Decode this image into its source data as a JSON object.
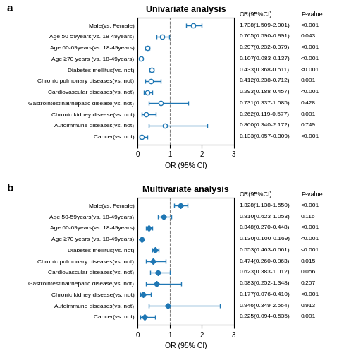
{
  "chart_data": [
    {
      "type": "forest",
      "orientation": "horizontal",
      "label": "a",
      "title": "Univariate analysis",
      "categories": [
        "Male(vs. Female)",
        "Age 50-59years(vs. 18-49years)",
        "Age 60-69years(vs. 18-49years)",
        "Age ≥70 years (vs. 18-49years)",
        "Diabetes mellitus(vs. not)",
        "Chronic pulmonary diseases(vs. not)",
        "Cardiovascular diseases(vs. not)",
        "Gastrointestinal/hepatic disease(vs. not)",
        "Chronic kidney disease(vs. not)",
        "Autoimmune diseases(vs. not)",
        "Cancer(vs. not)"
      ],
      "values": [
        1.738,
        0.765,
        0.297,
        0.107,
        0.433,
        0.412,
        0.293,
        0.731,
        0.262,
        0.86,
        0.133
      ],
      "ci_low": [
        1.509,
        0.59,
        0.232,
        0.083,
        0.368,
        0.238,
        0.188,
        0.337,
        0.119,
        0.34,
        0.057
      ],
      "ci_high": [
        2.001,
        0.991,
        0.379,
        0.137,
        0.511,
        0.712,
        0.457,
        1.585,
        0.577,
        2.172,
        0.309
      ],
      "columns": [
        {
          "header": "OR(95%CI)",
          "texts": [
            "1.738(1.509-2.001)",
            "0.765(0.590-0.991)",
            "0.297(0.232-0.379)",
            "0.107(0.083-0.137)",
            "0.433(0.368-0.511)",
            "0.412(0.238-0.712)",
            "0.293(0.188-0.457)",
            "0.731(0.337-1.585)",
            "0.262(0.119-0.577)",
            "0.860(0.340-2.172)",
            "0.133(0.057-0.309)"
          ]
        },
        {
          "header": "P-value",
          "texts": [
            "<0.001",
            "0.043",
            "<0.001",
            "<0.001",
            "<0.001",
            "0.001",
            "<0.001",
            "0.428",
            "0.001",
            "0.749",
            "<0.001"
          ]
        }
      ],
      "xlabel": "OR (95% CI)",
      "xlim": [
        0,
        3
      ],
      "xticks": [
        0,
        1,
        2,
        3
      ],
      "reference_line": 1.0,
      "marker": "circle"
    },
    {
      "type": "forest",
      "orientation": "horizontal",
      "label": "b",
      "title": "Multivariate analysis",
      "categories": [
        "Male(vs. Female)",
        "Age 50-59years(vs. 18-49years)",
        "Age 60-69years(vs. 18-49years)",
        "Age ≥70 years (vs. 18-49years)",
        "Diabetes mellitus(vs. not)",
        "Chronic pulmonary diseases(vs. not)",
        "Cardiovascular diseases(vs. not)",
        "Gastrointestinal/hepatic disease(vs. not)",
        "Chronic kidney disease(vs. not)",
        "Autoimmune diseases(vs. not)",
        "Cancer(vs. not)"
      ],
      "values": [
        1.328,
        0.81,
        0.348,
        0.13,
        0.553,
        0.474,
        0.623,
        0.583,
        0.177,
        0.946,
        0.225
      ],
      "ci_low": [
        1.138,
        0.623,
        0.27,
        0.1,
        0.463,
        0.26,
        0.383,
        0.252,
        0.076,
        0.349,
        0.094
      ],
      "ci_high": [
        1.55,
        1.053,
        0.448,
        0.169,
        0.661,
        0.863,
        1.012,
        1.348,
        0.41,
        2.564,
        0.535
      ],
      "columns": [
        {
          "header": "OR(95%CI)",
          "texts": [
            "1.328(1.138-1.550)",
            "0.810(0.623-1.053)",
            "0.348(0.270-0.448)",
            "0.130(0.100-0.169)",
            "0.553(0.463-0.661)",
            "0.474(0.260-0.863)",
            "0.623(0.383-1.012)",
            "0.583(0.252-1.348)",
            "0.177(0.076-0.410)",
            "0.946(0.349-2.564)",
            "0.225(0.094-0.535)"
          ]
        },
        {
          "header": "P-value",
          "texts": [
            "<0.001",
            "0.116",
            "<0.001",
            "<0.001",
            "<0.001",
            "0.015",
            "0.056",
            "0.207",
            "<0.001",
            "0.913",
            "0.001"
          ]
        }
      ],
      "xlabel": "OR (95% CI)",
      "xlim": [
        0,
        3
      ],
      "xticks": [
        0,
        1,
        2,
        3
      ],
      "reference_line": 1.0,
      "marker": "diamond"
    }
  ]
}
